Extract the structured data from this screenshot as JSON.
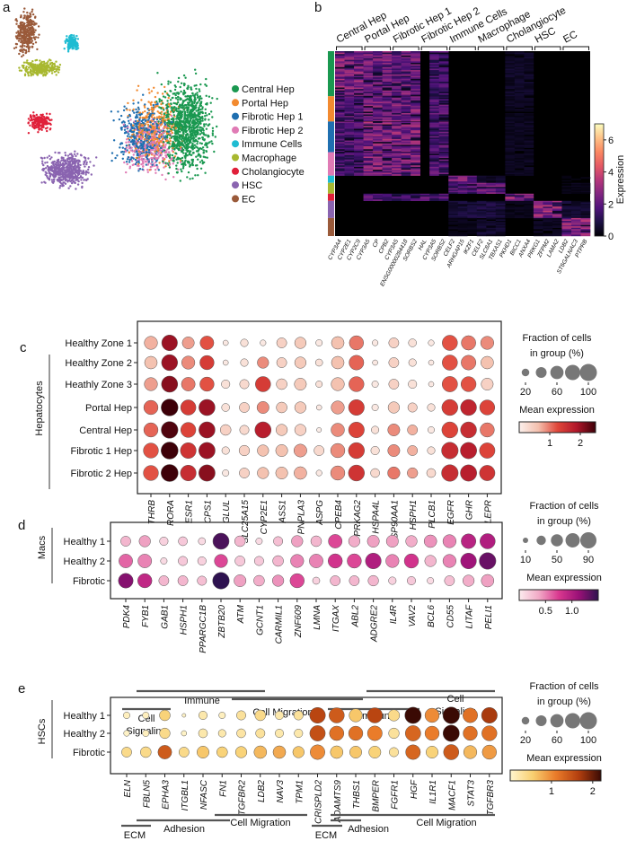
{
  "panels": {
    "a": "a",
    "b": "b",
    "c": "c",
    "d": "d",
    "e": "e"
  },
  "umap": {
    "legend": [
      {
        "label": "Central Hep",
        "color": "#1a9850"
      },
      {
        "label": "Portal Hep",
        "color": "#f28a30"
      },
      {
        "label": "Fibrotic Hep 1",
        "color": "#1f6fb0"
      },
      {
        "label": "Fibrotic Hep 2",
        "color": "#e07bb5"
      },
      {
        "label": "Immune Cells",
        "color": "#1fbcd2"
      },
      {
        "label": "Macrophage",
        "color": "#a8b830"
      },
      {
        "label": "Cholangiocyte",
        "color": "#e0203a"
      },
      {
        "label": "HSC",
        "color": "#8a64b0"
      },
      {
        "label": "EC",
        "color": "#9a5a3a"
      }
    ]
  },
  "chart_data": [
    {
      "type": "heatmap",
      "panel": "b",
      "gene_groups": [
        "Central Hep",
        "Portal Hep",
        "Fibrotic Hep 1",
        "Fibrotic Hep 2",
        "Immune Cells",
        "Macrophage",
        "Cholangiocyte",
        "HSC",
        "EC"
      ],
      "genes": [
        "CYP3A4",
        "CYP2E1",
        "CYP2C9",
        "CYP3A5",
        "CP",
        "CPB2",
        "CYP3A5",
        "ENSG00000284418",
        "SORBS2",
        "HAL",
        "CYP3A5",
        "SORBS2",
        "CELF2",
        "ARHGAP15",
        "IKZF1",
        "CELF2",
        "SLC8A1",
        "TBXAS1",
        "PKHD1",
        "BICC1",
        "ANXA4",
        "PRKG1",
        "ZFPM2",
        "LAMA2",
        "LDB2",
        "ST6GALNAC3",
        "PTPRB"
      ],
      "cell_clusters": [
        "Central Hep",
        "Portal Hep",
        "Fibrotic Hep 1",
        "Fibrotic Hep 2",
        "Immune Cells",
        "Macrophage",
        "Cholangiocyte",
        "HSC",
        "EC"
      ],
      "cluster_cells": [
        500,
        280,
        340,
        260,
        80,
        120,
        80,
        190,
        200
      ],
      "mean_expression_by_group": [
        [
          2.6,
          2.3,
          2.3,
          1.6,
          0,
          0,
          0.5,
          0,
          0
        ],
        [
          1.8,
          2.6,
          2.4,
          1.8,
          0,
          0,
          0.4,
          0,
          0
        ],
        [
          1.8,
          2.6,
          2.5,
          1.8,
          0,
          0,
          0.4,
          0,
          0
        ],
        [
          1.6,
          2.6,
          2.5,
          1.9,
          0,
          0,
          0.4,
          0,
          0
        ],
        [
          0.1,
          0.1,
          0.1,
          0.1,
          2.4,
          0.5,
          0,
          0.1,
          0.2
        ],
        [
          0.1,
          0.1,
          0.1,
          0.1,
          1.8,
          2.2,
          0,
          0,
          0.3
        ],
        [
          0.1,
          1.8,
          1.5,
          1.8,
          0,
          0,
          2.6,
          0.1,
          0
        ],
        [
          0,
          0,
          0,
          0,
          0.8,
          0.8,
          0.3,
          2.8,
          0.6
        ],
        [
          0,
          0,
          0,
          0,
          0.3,
          0.6,
          0,
          0.4,
          2.8
        ]
      ],
      "colorbar": {
        "label": "Expression",
        "range": [
          0,
          7
        ],
        "ticks": [
          "0",
          "2",
          "4",
          "6"
        ]
      }
    },
    {
      "type": "dotplot",
      "panel": "c",
      "ylabel": "Hepatocytes",
      "rows": [
        "Healthy Zone 1",
        "Healthy Zone 2",
        "Heathly Zone 3",
        "Portal Hep",
        "Central Hep",
        "Fibrotic 1 Hep",
        "Fibrotic 2 Hep"
      ],
      "genes": [
        "THRB",
        "RORA",
        "ESR1",
        "CPS1",
        "GLUL",
        "SLC25A15",
        "CYP2E1",
        "ASS1",
        "PNPLA3",
        "ASPG",
        "CPEB4",
        "PRKAG2",
        "HSPA4L",
        "HSP90AA1",
        "HSPH1",
        "PLCB1",
        "EGFR",
        "GHR",
        "LEPR"
      ],
      "expression": [
        [
          0.7,
          2.0,
          0.8,
          1.2,
          0.1,
          0.2,
          0.1,
          0.4,
          0.5,
          0.1,
          0.6,
          1.0,
          0.1,
          0.4,
          0.2,
          0.1,
          1.2,
          1.0,
          0.9
        ],
        [
          0.6,
          2.0,
          0.9,
          1.4,
          0.1,
          0.2,
          0.9,
          0.4,
          0.5,
          0.2,
          0.6,
          1.1,
          0.1,
          0.4,
          0.2,
          0.1,
          1.2,
          1.0,
          0.6
        ],
        [
          0.8,
          2.1,
          1.0,
          1.2,
          0.2,
          0.3,
          1.4,
          0.4,
          0.5,
          0.2,
          0.6,
          1.1,
          0.1,
          0.4,
          0.2,
          0.1,
          1.2,
          1.2,
          0.4
        ],
        [
          1.1,
          2.5,
          1.4,
          2.0,
          0.2,
          0.4,
          0.9,
          0.5,
          0.5,
          0.1,
          0.8,
          1.4,
          0.1,
          0.5,
          0.4,
          0.2,
          1.4,
          1.7,
          1.3
        ],
        [
          1.1,
          2.4,
          1.3,
          2.0,
          0.4,
          0.3,
          1.8,
          0.5,
          0.4,
          0.05,
          0.9,
          1.3,
          0.2,
          0.9,
          0.7,
          0.1,
          1.3,
          1.6,
          1.0
        ],
        [
          1.2,
          2.6,
          1.5,
          2.0,
          0.2,
          0.4,
          0.6,
          0.6,
          0.8,
          0.3,
          0.9,
          1.4,
          0.2,
          0.9,
          0.7,
          0.2,
          1.6,
          1.8,
          1.3
        ],
        [
          1.2,
          2.6,
          1.6,
          2.1,
          0.1,
          0.4,
          0.6,
          0.6,
          0.7,
          0.1,
          0.9,
          1.5,
          0.3,
          1.0,
          0.8,
          0.3,
          1.6,
          1.8,
          1.5
        ]
      ],
      "fraction": [
        [
          60,
          85,
          50,
          65,
          10,
          20,
          12,
          35,
          45,
          15,
          55,
          70,
          12,
          35,
          22,
          12,
          80,
          72,
          60
        ],
        [
          55,
          88,
          60,
          70,
          10,
          20,
          45,
          35,
          45,
          18,
          55,
          75,
          10,
          35,
          20,
          10,
          80,
          75,
          55
        ],
        [
          60,
          90,
          65,
          70,
          25,
          30,
          80,
          40,
          50,
          15,
          60,
          78,
          15,
          35,
          25,
          10,
          82,
          78,
          50
        ],
        [
          70,
          98,
          80,
          90,
          22,
          35,
          50,
          40,
          45,
          10,
          60,
          85,
          15,
          45,
          30,
          20,
          88,
          88,
          78
        ],
        [
          70,
          96,
          78,
          90,
          40,
          30,
          90,
          45,
          45,
          8,
          62,
          85,
          20,
          50,
          35,
          15,
          88,
          88,
          70
        ],
        [
          78,
          100,
          85,
          92,
          20,
          38,
          45,
          50,
          58,
          35,
          70,
          88,
          25,
          50,
          35,
          20,
          95,
          92,
          82
        ],
        [
          78,
          100,
          85,
          92,
          15,
          35,
          45,
          50,
          55,
          12,
          70,
          88,
          28,
          52,
          38,
          28,
          95,
          92,
          82
        ]
      ],
      "size_legend": {
        "title1": "Fraction of cells",
        "title2": "in group (%)",
        "values": [
          20,
          40,
          60,
          80,
          100
        ],
        "ticks": [
          "20",
          "60",
          "100"
        ]
      },
      "color_legend": {
        "title": "Mean expression",
        "range": [
          0,
          2.5
        ],
        "ticks": [
          "1",
          "2"
        ],
        "tick_values": [
          1,
          2
        ],
        "colors": [
          "#fbf0ec",
          "#f4c0ae",
          "#e0473a",
          "#b2182b",
          "#3d0008"
        ]
      }
    },
    {
      "type": "dotplot",
      "panel": "d",
      "ylabel": "Macs",
      "rows": [
        "Healthy 1",
        "Healthy 2",
        "Fibrotic"
      ],
      "genes": [
        "PDK4",
        "FYB1",
        "GAB1",
        "HSPH1",
        "PPARGC1B",
        "ZBTB20",
        "ATM",
        "GCNT1",
        "CARMIL1",
        "ZNF609",
        "LMNA",
        "ITGAX",
        "ABL2",
        "ADGRE2",
        "IL4R",
        "VAV2",
        "BCL6",
        "CD55",
        "LITAF",
        "PELI1"
      ],
      "expression": [
        [
          0.3,
          0.4,
          0.15,
          0.2,
          0.1,
          1.4,
          0.3,
          0.1,
          0.25,
          0.4,
          0.3,
          0.7,
          0.35,
          0.4,
          0.4,
          0.35,
          0.45,
          0.5,
          0.95,
          1.0
        ],
        [
          0.6,
          0.5,
          0.1,
          0.2,
          0.15,
          0.7,
          0.2,
          0.2,
          0.3,
          0.5,
          0.5,
          0.8,
          0.7,
          1.0,
          0.5,
          0.8,
          0.3,
          0.5,
          1.1,
          1.3
        ],
        [
          1.2,
          0.9,
          0.3,
          0.3,
          0.25,
          1.5,
          0.4,
          0.35,
          0.45,
          0.7,
          0.15,
          0.3,
          0.3,
          0.3,
          0.15,
          0.2,
          0.1,
          0.25,
          0.35,
          0.4
        ]
      ],
      "fraction": [
        [
          35,
          45,
          25,
          28,
          18,
          90,
          40,
          15,
          30,
          45,
          40,
          65,
          45,
          50,
          50,
          45,
          55,
          60,
          75,
          80
        ],
        [
          65,
          65,
          15,
          30,
          25,
          60,
          35,
          30,
          40,
          60,
          65,
          70,
          70,
          85,
          60,
          70,
          45,
          60,
          85,
          95
        ],
        [
          75,
          70,
          35,
          35,
          30,
          95,
          50,
          40,
          45,
          70,
          18,
          35,
          35,
          38,
          20,
          25,
          15,
          35,
          45,
          55
        ]
      ],
      "size_legend": {
        "title1": "Fraction of cells",
        "title2": "in group (%)",
        "values": [
          10,
          30,
          50,
          70,
          90
        ],
        "ticks": [
          "10",
          "50",
          "90"
        ]
      },
      "color_legend": {
        "title": "Mean expression",
        "range": [
          0,
          1.5
        ],
        "ticks": [
          "0.5",
          "1.0"
        ],
        "tick_values": [
          0.5,
          1.0
        ],
        "colors": [
          "#fcecee",
          "#f1a9c6",
          "#d9388f",
          "#9b1177",
          "#2e1250"
        ]
      },
      "annotations": [
        {
          "label": "Immune",
          "from": "FYB1",
          "to": "ZNF609"
        },
        {
          "label": "Cell Migration",
          "from": "ZBTB20",
          "to": "ABL2"
        },
        {
          "label": "Cell Signaling",
          "from": "PDK4",
          "to": "GAB1"
        },
        {
          "label": "Immune",
          "from": "ITGAX",
          "to": "VAV2"
        },
        {
          "label": "Cell Signaling",
          "from": "ADGRE2",
          "to": "PELI1"
        }
      ]
    },
    {
      "type": "dotplot",
      "panel": "e",
      "ylabel": "HSCs",
      "rows": [
        "Healthy 1",
        "Healthy 2",
        "Fibrotic"
      ],
      "genes": [
        "ELN",
        "FBLN5",
        "EPHA3",
        "ITGBL1",
        "NFASC",
        "FN1",
        "TGFBR2",
        "LDB2",
        "NAV3",
        "TPM1",
        "CRISPLD2",
        "ADAMTS9",
        "THBS1",
        "BMPER",
        "FGFR1",
        "HGF",
        "IL1R1",
        "MACF1",
        "STAT3",
        "TGFBR3"
      ],
      "expression": [
        [
          0.1,
          0.1,
          0.5,
          0.05,
          0.2,
          0.1,
          0.3,
          0.4,
          0.2,
          0.3,
          1.6,
          1.4,
          0.6,
          1.6,
          0.4,
          2.2,
          1.0,
          2.2,
          1.2,
          1.7
        ],
        [
          0.05,
          0.1,
          0.4,
          0.05,
          0.2,
          0.2,
          0.25,
          0.3,
          0.2,
          0.2,
          1.5,
          1.2,
          1.2,
          1.1,
          0.3,
          1.3,
          1.1,
          2.2,
          1.2,
          1.2
        ],
        [
          0.4,
          0.4,
          1.4,
          0.4,
          0.6,
          0.5,
          0.5,
          0.7,
          0.8,
          0.6,
          1.0,
          0.6,
          0.6,
          0.5,
          0.3,
          1.3,
          0.5,
          1.4,
          0.7,
          0.9
        ]
      ],
      "fraction": [
        [
          15,
          15,
          40,
          5,
          25,
          15,
          30,
          40,
          25,
          30,
          85,
          80,
          60,
          80,
          45,
          92,
          70,
          95,
          75,
          85
        ],
        [
          12,
          15,
          38,
          10,
          28,
          20,
          28,
          30,
          25,
          25,
          82,
          72,
          70,
          75,
          38,
          82,
          70,
          92,
          70,
          78
        ],
        [
          35,
          40,
          65,
          35,
          50,
          40,
          45,
          55,
          55,
          45,
          75,
          55,
          50,
          50,
          30,
          75,
          50,
          80,
          60,
          70
        ]
      ],
      "size_legend": {
        "title1": "Fraction of cells",
        "title2": "in group (%)",
        "values": [
          20,
          40,
          60,
          80,
          100
        ],
        "ticks": [
          "20",
          "60",
          "100"
        ]
      },
      "color_legend": {
        "title": "Mean expression",
        "range": [
          0,
          2.2
        ],
        "ticks": [
          "1",
          "2"
        ],
        "tick_values": [
          1,
          2
        ],
        "colors": [
          "#fff6cf",
          "#f8cf70",
          "#ea7c2a",
          "#b4400f",
          "#3a0a04"
        ]
      },
      "annotations": [
        {
          "label": "Cell Migration",
          "from": "FN1",
          "to": "TPM1"
        },
        {
          "label": "Adhesion",
          "from": "FBLN5",
          "to": "NFASC"
        },
        {
          "label": "ECM",
          "from": "ELN",
          "to": "FBLN5"
        },
        {
          "label": "Cell Migration",
          "from": "ADAMTS9",
          "to": "TGFBR3"
        },
        {
          "label": "Adhesion",
          "from": "ADAMTS9",
          "to": "THBS1"
        },
        {
          "label": "ECM",
          "from": "CRISPLD2",
          "to": "ADAMTS9"
        }
      ]
    }
  ]
}
